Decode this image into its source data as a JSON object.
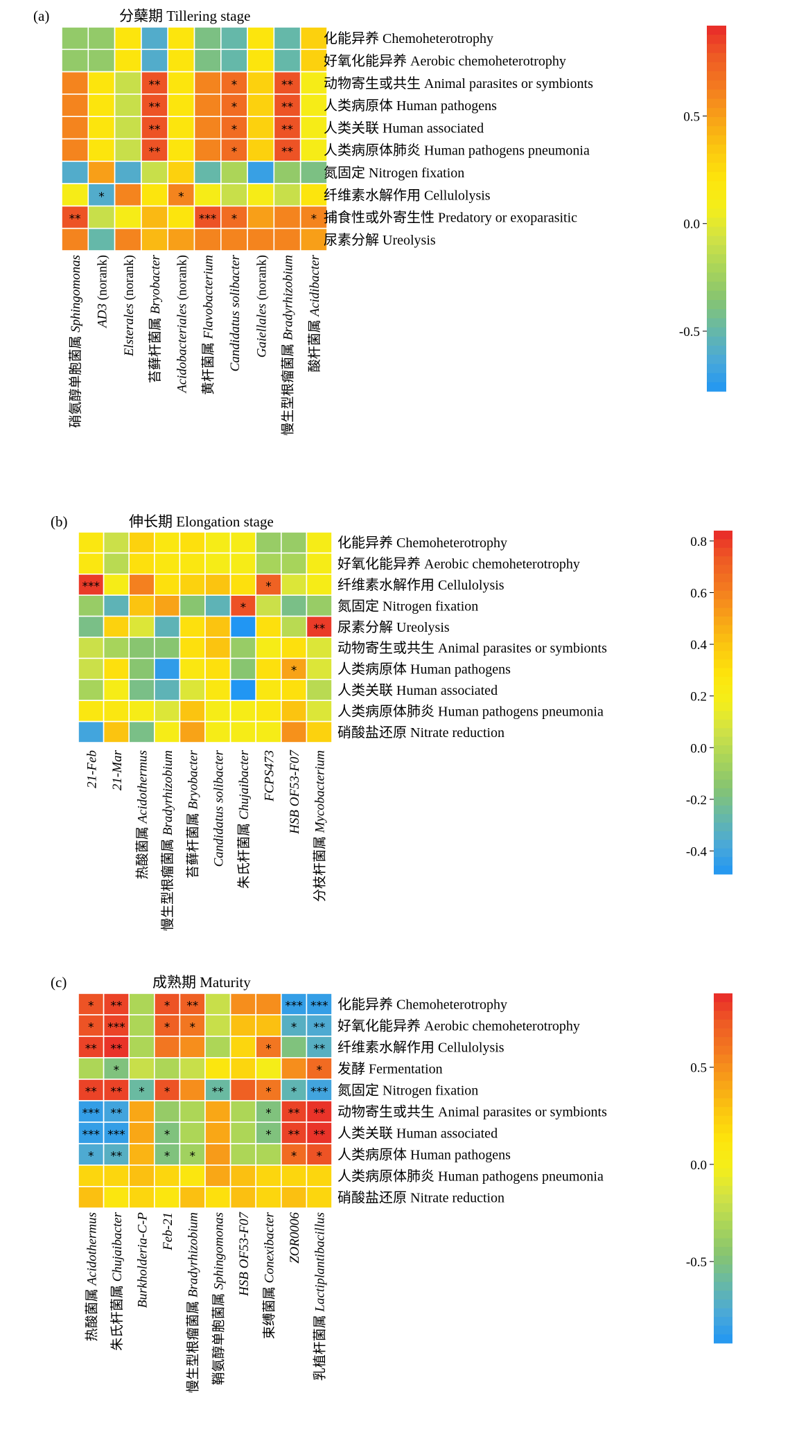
{
  "colors": {
    "scale": [
      "#2196f3",
      "#4aa8d8",
      "#66b8a8",
      "#86c472",
      "#a8d45a",
      "#d0e246",
      "#f4ee1a",
      "#fde40c",
      "#fbc510",
      "#f8a018",
      "#f37a20",
      "#ee5a24",
      "#e8292a"
    ],
    "significant_asterisk": "#000000",
    "cell_border": "#ffffff"
  },
  "chart_data": [
    {
      "type": "heatmap",
      "panel_label": "(a)",
      "title": "分蘖期 Tillering stage",
      "rows": [
        "化能异养 Chemoheterotrophy",
        "好氧化能异养 Aerobic chemoheterotrophy",
        "动物寄生或共生 Animal parasites or symbionts",
        "人类病原体 Human pathogens",
        "人类关联 Human associated",
        "人类病原体肺炎 Human pathogens pneumonia",
        "氮固定 Nitrogen fixation",
        "纤维素水解作用 Cellulolysis",
        "捕食性或外寄生性 Predatory or exoparasitic",
        "尿素分解 Ureolysis"
      ],
      "columns": [
        {
          "cn": "硝氨醇单胞菌属 ",
          "en": "Sphingomonas",
          "suffix": ""
        },
        {
          "cn": "",
          "en": "AD3",
          "suffix": " (norank)"
        },
        {
          "cn": "",
          "en": "Elsterales",
          "suffix": " (norank)"
        },
        {
          "cn": "苔藓杆菌属 ",
          "en": "Bryobacter",
          "suffix": ""
        },
        {
          "cn": "",
          "en": "Acidobacteriales",
          "suffix": " (norank)"
        },
        {
          "cn": "黄杆菌属 ",
          "en": "Flavobacterium",
          "suffix": ""
        },
        {
          "cn": "",
          "en": "Candidatus solibacter",
          "suffix": ""
        },
        {
          "cn": "",
          "en": "Gaiellales",
          "suffix": " (norank)"
        },
        {
          "cn": "慢生型根瘤菌属 ",
          "en": "Bradyrhizobium",
          "suffix": ""
        },
        {
          "cn": "酸杆菌属 ",
          "en": "Acidibacter",
          "suffix": ""
        }
      ],
      "values": [
        [
          -0.3,
          -0.3,
          0.2,
          -0.6,
          0.2,
          -0.4,
          -0.5,
          0.2,
          -0.5,
          0.3
        ],
        [
          -0.3,
          -0.3,
          0.2,
          -0.6,
          0.2,
          -0.4,
          -0.5,
          0.2,
          -0.5,
          0.3
        ],
        [
          0.6,
          0.2,
          -0.1,
          0.8,
          0.2,
          0.6,
          0.7,
          0.3,
          0.8,
          0.1
        ],
        [
          0.6,
          0.2,
          -0.1,
          0.8,
          0.2,
          0.6,
          0.7,
          0.3,
          0.8,
          0.1
        ],
        [
          0.6,
          0.2,
          -0.1,
          0.8,
          0.2,
          0.6,
          0.7,
          0.3,
          0.8,
          0.1
        ],
        [
          0.6,
          0.2,
          -0.1,
          0.8,
          0.2,
          0.6,
          0.7,
          0.3,
          0.8,
          0.1
        ],
        [
          -0.6,
          0.5,
          -0.6,
          -0.1,
          0.3,
          -0.5,
          -0.2,
          -0.7,
          -0.3,
          -0.4
        ],
        [
          0.1,
          -0.6,
          0.6,
          0.2,
          0.6,
          0.1,
          -0.1,
          0.1,
          -0.1,
          0.2
        ],
        [
          0.8,
          -0.1,
          0.1,
          0.4,
          0.2,
          0.8,
          0.7,
          0.5,
          0.6,
          0.6
        ],
        [
          0.6,
          -0.5,
          0.6,
          0.4,
          0.5,
          0.6,
          0.6,
          0.6,
          0.6,
          0.5
        ]
      ],
      "significance": [
        [
          "",
          "",
          "",
          "",
          "",
          "",
          "",
          "",
          "",
          ""
        ],
        [
          "",
          "",
          "",
          "",
          "",
          "",
          "",
          "",
          "",
          ""
        ],
        [
          "",
          "",
          "",
          "**",
          "",
          "",
          "*",
          "",
          "**",
          ""
        ],
        [
          "",
          "",
          "",
          "**",
          "",
          "",
          "*",
          "",
          "**",
          ""
        ],
        [
          "",
          "",
          "",
          "**",
          "",
          "",
          "*",
          "",
          "**",
          ""
        ],
        [
          "",
          "",
          "",
          "**",
          "",
          "",
          "*",
          "",
          "**",
          ""
        ],
        [
          "",
          "",
          "",
          "",
          "",
          "",
          "",
          "",
          "",
          ""
        ],
        [
          "",
          "*",
          "",
          "",
          "*",
          "",
          "",
          "",
          "",
          ""
        ],
        [
          "**",
          "",
          "",
          "",
          "",
          "***",
          "*",
          "",
          "",
          "*"
        ],
        [
          "",
          "",
          "",
          "",
          "",
          "",
          "",
          "",
          "",
          ""
        ]
      ],
      "colorbar": {
        "min": -0.78,
        "max": 0.92,
        "ticks": [
          "0.5",
          "0.0",
          "-0.5"
        ],
        "tick_values": [
          0.5,
          0.0,
          -0.5
        ]
      }
    },
    {
      "type": "heatmap",
      "panel_label": "(b)",
      "title": "伸长期 Elongation stage",
      "rows": [
        "化能异养 Chemoheterotrophy",
        "好氧化能异养 Aerobic chemoheterotrophy",
        "纤维素水解作用 Cellulolysis",
        "氮固定 Nitrogen fixation",
        "尿素分解 Ureolysis",
        "动物寄生或共生 Animal parasites or symbionts",
        "人类病原体 Human pathogens",
        "人类关联 Human associated",
        "人类病原体肺炎 Human pathogens pneumonia",
        "硝酸盐还原 Nitrate reduction"
      ],
      "columns": [
        {
          "cn": "",
          "en": "21-Feb",
          "suffix": ""
        },
        {
          "cn": "",
          "en": "21-Mar",
          "suffix": ""
        },
        {
          "cn": "热酸菌属 ",
          "en": "Acidothermus",
          "suffix": ""
        },
        {
          "cn": "慢生型根瘤菌属 ",
          "en": "Bradyrhizobium",
          "suffix": ""
        },
        {
          "cn": "苔藓杆菌属 ",
          "en": "Bryobacter",
          "suffix": ""
        },
        {
          "cn": "",
          "en": "Candidatus solibacter",
          "suffix": ""
        },
        {
          "cn": "朱氏杆菌属 ",
          "en": "Chujaibacter",
          "suffix": ""
        },
        {
          "cn": "",
          "en": "FCPS473",
          "suffix": ""
        },
        {
          "cn": "",
          "en": "HSB OF53-F07",
          "suffix": ""
        },
        {
          "cn": "分枝杆菌属 ",
          "en": "Mycobacterium",
          "suffix": ""
        }
      ],
      "values": [
        [
          0.25,
          0.05,
          0.35,
          0.25,
          0.3,
          0.2,
          0.2,
          -0.1,
          -0.1,
          0.2
        ],
        [
          0.25,
          0.0,
          0.3,
          0.25,
          0.25,
          0.2,
          0.2,
          -0.05,
          -0.05,
          0.2
        ],
        [
          0.8,
          0.2,
          0.6,
          0.3,
          0.35,
          0.4,
          0.3,
          0.7,
          0.1,
          0.2
        ],
        [
          -0.1,
          -0.3,
          0.4,
          0.5,
          -0.15,
          -0.3,
          0.75,
          0.05,
          -0.2,
          -0.1
        ],
        [
          -0.2,
          0.35,
          0.1,
          -0.3,
          0.3,
          0.4,
          -0.5,
          0.3,
          0.0,
          0.8
        ],
        [
          0.05,
          -0.05,
          -0.15,
          -0.15,
          0.3,
          0.4,
          -0.1,
          0.2,
          0.3,
          0.1
        ],
        [
          0.05,
          0.3,
          -0.15,
          -0.45,
          0.25,
          0.3,
          -0.15,
          0.3,
          0.5,
          0.1
        ],
        [
          -0.05,
          0.2,
          -0.2,
          -0.3,
          0.1,
          0.25,
          -0.5,
          0.25,
          0.3,
          0.0
        ],
        [
          0.25,
          0.25,
          0.2,
          0.1,
          0.4,
          0.2,
          0.2,
          0.25,
          0.4,
          0.1
        ],
        [
          -0.4,
          0.4,
          -0.2,
          0.2,
          0.5,
          0.2,
          0.2,
          0.2,
          0.55,
          0.35
        ]
      ],
      "significance": [
        [
          "",
          "",
          "",
          "",
          "",
          "",
          "",
          "",
          "",
          ""
        ],
        [
          "",
          "",
          "",
          "",
          "",
          "",
          "",
          "",
          "",
          ""
        ],
        [
          "***",
          "",
          "",
          "",
          "",
          "",
          "",
          "*",
          "",
          ""
        ],
        [
          "",
          "",
          "",
          "",
          "",
          "",
          "*",
          "",
          "",
          ""
        ],
        [
          "",
          "",
          "",
          "",
          "",
          "",
          "",
          "",
          "",
          "**"
        ],
        [
          "",
          "",
          "",
          "",
          "",
          "",
          "",
          "",
          "",
          ""
        ],
        [
          "",
          "",
          "",
          "",
          "",
          "",
          "",
          "",
          "*",
          ""
        ],
        [
          "",
          "",
          "",
          "",
          "",
          "",
          "",
          "",
          "",
          ""
        ],
        [
          "",
          "",
          "",
          "",
          "",
          "",
          "",
          "",
          "",
          ""
        ],
        [
          "",
          "",
          "",
          "",
          "",
          "",
          "",
          "",
          "",
          ""
        ]
      ],
      "colorbar": {
        "min": -0.49,
        "max": 0.84,
        "ticks": [
          "0.8",
          "0.6",
          "0.4",
          "0.2",
          "0.0",
          "-0.2",
          "-0.4"
        ],
        "tick_values": [
          0.8,
          0.6,
          0.4,
          0.2,
          0.0,
          -0.2,
          -0.4
        ]
      }
    },
    {
      "type": "heatmap",
      "panel_label": "(c)",
      "title": "成熟期 Maturity",
      "rows": [
        "化能异养 Chemoheterotrophy",
        "好氧化能异养 Aerobic chemoheterotrophy",
        "纤维素水解作用 Cellulolysis",
        "发酵 Fermentation",
        "氮固定 Nitrogen fixation",
        "动物寄生或共生 Animal parasites or symbionts",
        "人类关联 Human associated",
        "人类病原体 Human pathogens",
        "人类病原体肺炎 Human pathogens pneumonia",
        "硝酸盐还原 Nitrate reduction"
      ],
      "columns": [
        {
          "cn": "热酸菌属 ",
          "en": "Acidothermus",
          "suffix": ""
        },
        {
          "cn": "朱氏杆菌属 ",
          "en": "Chujaibacter",
          "suffix": ""
        },
        {
          "cn": "",
          "en": "Burkholderia-C-P",
          "suffix": ""
        },
        {
          "cn": "",
          "en": "Feb-21",
          "suffix": ""
        },
        {
          "cn": "慢生型根瘤菌属 ",
          "en": "Bradyrhizobium",
          "suffix": ""
        },
        {
          "cn": "鞘氨醇单胞菌属 ",
          "en": "Sphingomonas",
          "suffix": ""
        },
        {
          "cn": "",
          "en": "HSB OF53-F07",
          "suffix": ""
        },
        {
          "cn": "束缚菌属 ",
          "en": "Conexibacter",
          "suffix": ""
        },
        {
          "cn": "",
          "en": "ZOR0006",
          "suffix": ""
        },
        {
          "cn": "乳植杆菌属 ",
          "en": "Lactiplantibacillus",
          "suffix": ""
        }
      ],
      "values": [
        [
          0.75,
          0.8,
          -0.3,
          0.75,
          0.7,
          -0.2,
          0.5,
          0.5,
          -0.85,
          -0.85
        ],
        [
          0.75,
          0.8,
          -0.3,
          0.7,
          0.6,
          -0.2,
          0.3,
          0.3,
          -0.7,
          -0.75
        ],
        [
          0.8,
          0.85,
          -0.3,
          0.6,
          0.5,
          -0.3,
          0.2,
          0.6,
          -0.5,
          -0.7
        ],
        [
          -0.3,
          -0.5,
          -0.2,
          -0.3,
          -0.2,
          0.1,
          0.2,
          0.0,
          0.5,
          0.65
        ],
        [
          0.8,
          0.8,
          -0.6,
          0.75,
          0.5,
          -0.6,
          0.7,
          0.6,
          -0.65,
          -0.8
        ],
        [
          -0.85,
          -0.8,
          0.4,
          -0.4,
          -0.3,
          0.4,
          -0.3,
          -0.5,
          0.8,
          0.85
        ],
        [
          -0.85,
          -0.85,
          0.4,
          -0.5,
          -0.3,
          0.4,
          -0.3,
          -0.5,
          0.8,
          0.85
        ],
        [
          -0.75,
          -0.7,
          0.35,
          -0.5,
          -0.35,
          0.45,
          -0.3,
          -0.3,
          0.65,
          0.75
        ],
        [
          0.2,
          0.2,
          0.3,
          0.2,
          0.1,
          0.4,
          0.3,
          0.2,
          0.2,
          0.2
        ],
        [
          0.3,
          0.1,
          0.2,
          0.1,
          0.3,
          0.15,
          0.3,
          0.2,
          0.3,
          0.2
        ]
      ],
      "significance": [
        [
          "*",
          "**",
          "",
          "*",
          "**",
          "",
          "",
          "",
          "***",
          "***"
        ],
        [
          "*",
          "***",
          "",
          "*",
          "*",
          "",
          "",
          "",
          "*",
          "**"
        ],
        [
          "**",
          "**",
          "",
          "",
          "",
          "",
          "",
          "*",
          "",
          "**"
        ],
        [
          "",
          "*",
          "",
          "",
          "",
          "",
          "",
          "",
          "",
          "*"
        ],
        [
          "**",
          "**",
          "*",
          "*",
          "",
          "**",
          "",
          "*",
          "*",
          "***"
        ],
        [
          "***",
          "**",
          "",
          "",
          "",
          "",
          "",
          "*",
          "**",
          "**"
        ],
        [
          "***",
          "***",
          "",
          "*",
          "",
          "",
          "",
          "*",
          "**",
          "**"
        ],
        [
          "*",
          "**",
          "",
          "*",
          "*",
          "",
          "",
          "",
          "*",
          "*"
        ],
        [
          "",
          "",
          "",
          "",
          "",
          "",
          "",
          "",
          "",
          ""
        ],
        [
          "",
          "",
          "",
          "",
          "",
          "",
          "",
          "",
          "",
          ""
        ]
      ],
      "colorbar": {
        "min": -0.92,
        "max": 0.88,
        "ticks": [
          "0.5",
          "0.0",
          "-0.5"
        ],
        "tick_values": [
          0.5,
          0.0,
          -0.5
        ]
      }
    }
  ]
}
